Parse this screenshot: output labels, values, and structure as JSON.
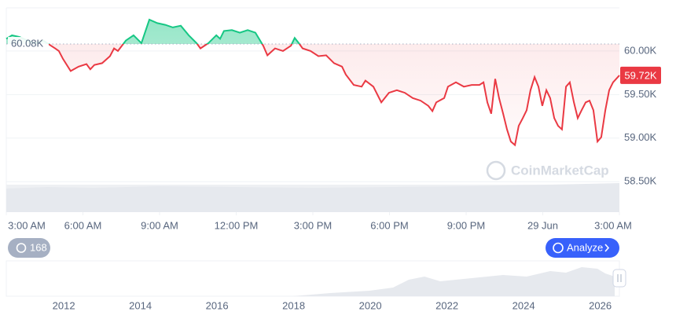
{
  "chart_data": [
    {
      "type": "line",
      "x": [
        3.0,
        3.22,
        3.52,
        3.83,
        4.14,
        4.45,
        4.75,
        4.91,
        5.06,
        5.22,
        5.52,
        5.83,
        6.14,
        6.29,
        6.45,
        6.75,
        7.06,
        7.22,
        7.37,
        7.68,
        7.98,
        8.29,
        8.6,
        8.91,
        9.22,
        9.52,
        9.83,
        10.14,
        10.45,
        10.6,
        10.91,
        11.22,
        11.37,
        11.52,
        11.83,
        12.14,
        12.45,
        12.75,
        13.06,
        13.22,
        13.52,
        13.83,
        14.14,
        14.29,
        14.45,
        14.6,
        14.91,
        15.22,
        15.52,
        15.83,
        16.14,
        16.29,
        16.6,
        16.91,
        17.06,
        17.37,
        17.68,
        17.98,
        18.29,
        18.6,
        18.91,
        19.22,
        19.52,
        19.68,
        19.83,
        20.14,
        20.29,
        20.6,
        20.91,
        21.22,
        21.52,
        21.68,
        21.83,
        21.98,
        22.14,
        22.29,
        22.45,
        22.6,
        22.75,
        22.91,
        23.06,
        23.22,
        23.37,
        23.52,
        23.68,
        23.83,
        23.98,
        24.14,
        24.29,
        24.45,
        24.6,
        24.75,
        24.91,
        25.06,
        25.22,
        25.37,
        25.52,
        25.68,
        25.83,
        25.98,
        26.14,
        26.29,
        26.45,
        26.6,
        26.75,
        27.0
      ],
      "values": [
        60.14,
        60.18,
        60.16,
        60.12,
        60.09,
        60.12,
        60.06,
        60.03,
        60.0,
        59.91,
        59.77,
        59.82,
        59.85,
        59.79,
        59.84,
        59.86,
        59.94,
        60.03,
        60.0,
        60.12,
        60.18,
        60.09,
        60.36,
        60.32,
        60.3,
        60.27,
        60.29,
        60.18,
        60.09,
        60.03,
        60.09,
        60.18,
        60.14,
        60.23,
        60.24,
        60.21,
        60.24,
        60.21,
        60.06,
        59.95,
        60.03,
        60.0,
        60.06,
        60.15,
        60.09,
        60.03,
        60.0,
        59.94,
        59.95,
        59.86,
        59.82,
        59.73,
        59.61,
        59.59,
        59.66,
        59.59,
        59.41,
        59.52,
        59.55,
        59.52,
        59.46,
        59.43,
        59.37,
        59.31,
        59.41,
        59.46,
        59.59,
        59.64,
        59.59,
        59.61,
        59.61,
        59.64,
        59.41,
        59.28,
        59.68,
        59.46,
        59.28,
        59.1,
        58.96,
        58.92,
        59.14,
        59.23,
        59.32,
        59.55,
        59.7,
        59.59,
        59.37,
        59.55,
        59.46,
        59.23,
        59.14,
        59.1,
        59.59,
        59.64,
        59.41,
        59.23,
        59.32,
        59.41,
        59.43,
        59.32,
        58.96,
        59.01,
        59.32,
        59.55,
        59.64,
        59.72
      ],
      "colors": {
        "up": "#16c784",
        "down": "#ea3943"
      },
      "baseline": {
        "value": 60.08,
        "label": "60.08K"
      },
      "last_price": {
        "value": 59.72,
        "label": "59.72K"
      },
      "xlim": [
        3,
        27
      ],
      "xticks": [
        {
          "value": 3,
          "label": "3:00 AM"
        },
        {
          "value": 6,
          "label": "6:00 AM"
        },
        {
          "value": 9,
          "label": "9:00 AM"
        },
        {
          "value": 12,
          "label": "12:00 PM"
        },
        {
          "value": 15,
          "label": "3:00 PM"
        },
        {
          "value": 18,
          "label": "6:00 PM"
        },
        {
          "value": 21,
          "label": "9:00 PM"
        },
        {
          "value": 24,
          "label": "29 Jun"
        },
        {
          "value": 27,
          "label": "3:00 AM"
        }
      ],
      "ylim": [
        58.15,
        60.495
      ],
      "yticks": [
        {
          "value": 58.5,
          "label": "58.50K"
        },
        {
          "value": 59,
          "label": "59.00K"
        },
        {
          "value": 59.5,
          "label": "59.50K"
        },
        {
          "value": 60,
          "label": "60.00K"
        }
      ],
      "grid": true,
      "watermark": "CoinMarketCap",
      "history_count": 168,
      "analyze_button": "Analyze"
    },
    {
      "type": "navigator",
      "xlim": [
        2010.5,
        2026.5
      ],
      "xticks": [
        2012,
        2014,
        2016,
        2018,
        2020,
        2022,
        2024,
        2026
      ]
    }
  ]
}
